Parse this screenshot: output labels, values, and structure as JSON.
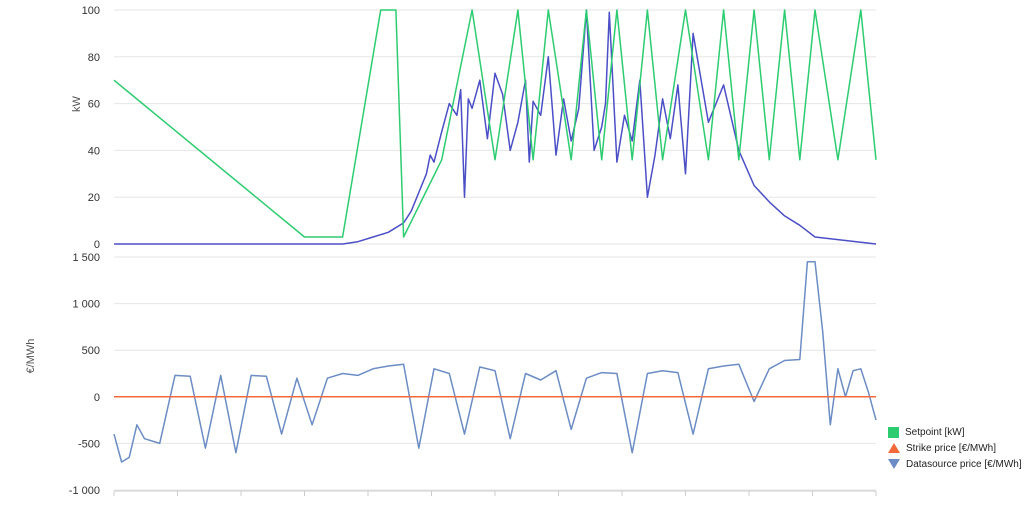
{
  "colors": {
    "setpoint": "#2ecc71",
    "strike": "#f36a3a",
    "datasource": "#6b8cc4",
    "production": "#4b4fc6",
    "grid": "#e6e6e6",
    "axis": "#cccccc"
  },
  "legend": [
    {
      "name": "Setpoint [kW]",
      "color": "#2ecc71",
      "marker": "square"
    },
    {
      "name": "Strike price [€/MWh]",
      "color": "#f36a3a",
      "marker": "triangle-up"
    },
    {
      "name": "Datasource price [€/MWh]",
      "color": "#6b8cc4",
      "marker": "triangle-down"
    }
  ],
  "chart_data": [
    {
      "type": "line",
      "ylabel": "kW",
      "ylim": [
        0,
        100
      ],
      "yticks": [
        "0",
        "20",
        "40",
        "60",
        "80",
        "100"
      ],
      "x": [
        0,
        0.25,
        0.3,
        0.35,
        0.37,
        0.38,
        0.43,
        0.47,
        0.5,
        0.53,
        0.55,
        0.57,
        0.6,
        0.62,
        0.64,
        0.66,
        0.68,
        0.7,
        0.72,
        0.75,
        0.78,
        0.8,
        0.82,
        0.84,
        0.86,
        0.88,
        0.9,
        0.92,
        0.95,
        0.98,
        1.0
      ],
      "series": [
        {
          "name": "Setpoint [kW]",
          "values": [
            70,
            3,
            3,
            100,
            100,
            3,
            36,
            100,
            36,
            100,
            36,
            100,
            36,
            100,
            36,
            100,
            36,
            100,
            36,
            100,
            36,
            100,
            36,
            100,
            36,
            100,
            36,
            100,
            36,
            100,
            36
          ]
        },
        {
          "name": "",
          "values": [
            0,
            0,
            0,
            0,
            0,
            0,
            0,
            0,
            0,
            0,
            0,
            0,
            0,
            0,
            0,
            0,
            0,
            0,
            0,
            0,
            0,
            0,
            0,
            0,
            0,
            0,
            0,
            0,
            0,
            0,
            0
          ]
        }
      ],
      "production_profile": {
        "x": [
          0.0,
          0.3,
          0.32,
          0.34,
          0.36,
          0.38,
          0.39,
          0.4,
          0.41,
          0.415,
          0.42,
          0.43,
          0.44,
          0.45,
          0.455,
          0.46,
          0.465,
          0.47,
          0.48,
          0.49,
          0.5,
          0.51,
          0.52,
          0.53,
          0.54,
          0.545,
          0.55,
          0.56,
          0.57,
          0.58,
          0.59,
          0.6,
          0.61,
          0.62,
          0.63,
          0.64,
          0.645,
          0.65,
          0.66,
          0.67,
          0.68,
          0.69,
          0.7,
          0.71,
          0.72,
          0.73,
          0.74,
          0.75,
          0.76,
          0.78,
          0.8,
          0.82,
          0.84,
          0.86,
          0.88,
          0.9,
          0.92,
          1.0
        ],
        "y": [
          0,
          0,
          1,
          3,
          5,
          9,
          14,
          22,
          30,
          38,
          35,
          48,
          60,
          55,
          66,
          20,
          62,
          58,
          70,
          45,
          73,
          64,
          40,
          52,
          70,
          35,
          61,
          55,
          80,
          38,
          62,
          44,
          58,
          100,
          40,
          50,
          60,
          99,
          35,
          55,
          44,
          70,
          20,
          38,
          62,
          45,
          68,
          30,
          90,
          52,
          68,
          40,
          25,
          18,
          12,
          8,
          3,
          0
        ]
      }
    },
    {
      "type": "line",
      "ylabel": "€/MWh",
      "ylim": [
        -1000,
        1500
      ],
      "yticks": [
        "-1 000",
        "-500",
        "0",
        "500",
        "1 000",
        "1 500"
      ],
      "x": [
        0,
        0.01,
        0.02,
        0.03,
        0.04,
        0.06,
        0.08,
        0.1,
        0.12,
        0.14,
        0.16,
        0.18,
        0.2,
        0.22,
        0.24,
        0.26,
        0.28,
        0.3,
        0.32,
        0.34,
        0.36,
        0.38,
        0.4,
        0.42,
        0.44,
        0.46,
        0.48,
        0.5,
        0.52,
        0.54,
        0.56,
        0.58,
        0.6,
        0.62,
        0.64,
        0.66,
        0.68,
        0.7,
        0.72,
        0.74,
        0.76,
        0.78,
        0.8,
        0.82,
        0.84,
        0.86,
        0.88,
        0.9,
        0.91,
        0.92,
        0.93,
        0.94,
        0.95,
        0.96,
        0.97,
        0.98,
        0.99,
        1.0
      ],
      "series": [
        {
          "name": "Strike price [€/MWh]",
          "values": [
            0,
            0,
            0,
            0,
            0,
            0,
            0,
            0,
            0,
            0,
            0,
            0,
            0,
            0,
            0,
            0,
            0,
            0,
            0,
            0,
            0,
            0,
            0,
            0,
            0,
            0,
            0,
            0,
            0,
            0,
            0,
            0,
            0,
            0,
            0,
            0,
            0,
            0,
            0,
            0,
            0,
            0,
            0,
            0,
            0,
            0,
            0,
            0,
            0,
            0,
            0,
            0,
            0,
            0,
            0,
            0,
            0,
            0
          ]
        },
        {
          "name": "Datasource price [€/MWh]",
          "values": [
            -400,
            -700,
            -650,
            -300,
            -450,
            -500,
            230,
            220,
            -550,
            230,
            -600,
            230,
            220,
            -400,
            200,
            -300,
            200,
            250,
            230,
            300,
            330,
            350,
            -550,
            300,
            250,
            -400,
            320,
            280,
            -450,
            250,
            180,
            280,
            -350,
            200,
            260,
            250,
            -600,
            250,
            280,
            260,
            -400,
            300,
            330,
            350,
            -50,
            300,
            390,
            400,
            1450,
            1450,
            700,
            -300,
            300,
            0,
            280,
            300,
            50,
            -250
          ]
        }
      ]
    }
  ]
}
